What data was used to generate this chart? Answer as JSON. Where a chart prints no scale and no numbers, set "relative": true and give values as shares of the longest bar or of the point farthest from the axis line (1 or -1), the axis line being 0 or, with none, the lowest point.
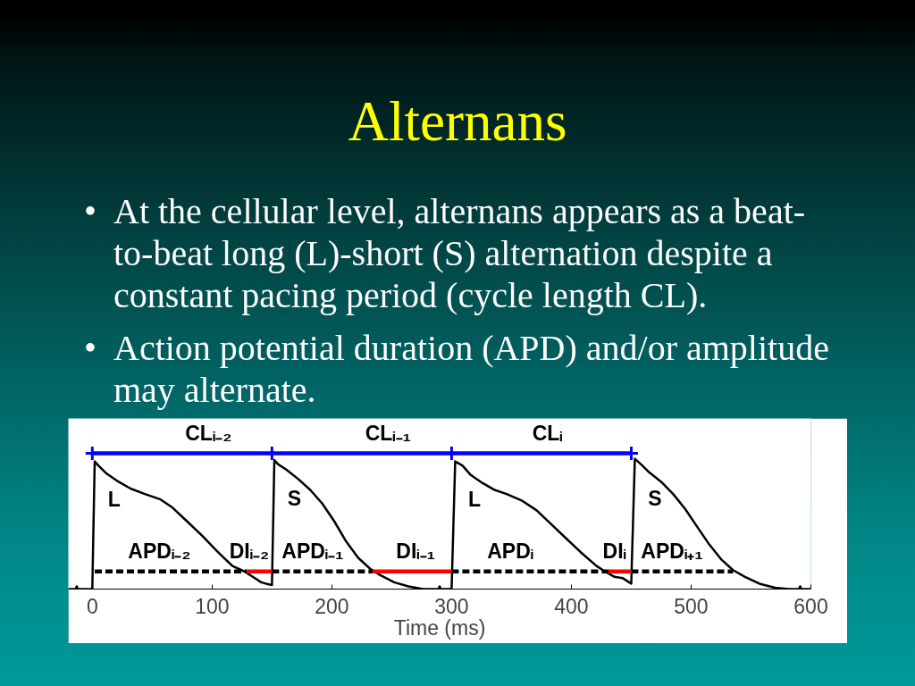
{
  "chart_data": {
    "type": "line",
    "title": "Alternans",
    "xlabel": "Time (ms)",
    "annotations": [
      "• At the cellular level, alternans appears as a beat-to-beat long (L)-short (S) alternation despite a constant pacing period (cycle length CL).",
      "• Action potential duration (APD) and/or amplitude may alternate.",
      {
        "text": "CLᵢ₋₂",
        "x": 97,
        "y": 1
      },
      {
        "text": "CLᵢ₋₁",
        "x": 247,
        "y": 1
      },
      {
        "text": "CLᵢ",
        "x": 380,
        "y": 1
      },
      {
        "text": "L",
        "x": 1,
        "y": 0.66
      },
      {
        "text": "S",
        "x": 151,
        "y": 0.67
      },
      {
        "text": "L",
        "x": 302,
        "y": 0.66
      },
      {
        "text": "S",
        "x": 452,
        "y": 0.67
      },
      {
        "text": "APDᵢ₋₂",
        "x": 56,
        "y": 0.13
      },
      {
        "text": "DIᵢ₋₂",
        "x": 131,
        "y": 0.13
      },
      {
        "text": "APDᵢ₋₁",
        "x": 184,
        "y": 0.13
      },
      {
        "text": "DIᵢ₋₁",
        "x": 270,
        "y": 0.13
      },
      {
        "text": "APDᵢ",
        "x": 349,
        "y": 0.13
      },
      {
        "text": "DIᵢ",
        "x": 436,
        "y": 0.13
      },
      {
        "text": "APDᵢ₊₁",
        "x": 484,
        "y": 0.13
      }
    ],
    "relative": true,
    "xlim": [
      -20,
      600
    ],
    "xticks": [
      0,
      100,
      200,
      300,
      400,
      500,
      600
    ],
    "grid": false,
    "series": [
      {
        "color": "#000000",
        "x": [
          -20,
          -14,
          -13,
          -12,
          0,
          2,
          5,
          12,
          22,
          32,
          44,
          57,
          67,
          79,
          92,
          104,
          117,
          127,
          134,
          141,
          145,
          150,
          152,
          155,
          162,
          172,
          182,
          192,
          202,
          212,
          222,
          232,
          239,
          252,
          264,
          276,
          289,
          290,
          291,
          300,
          303,
          309,
          316,
          326,
          336,
          346,
          359,
          371,
          383,
          396,
          408,
          421,
          428,
          436,
          443,
          450,
          453,
          458,
          465,
          475,
          485,
          495,
          505,
          515,
          525,
          535,
          545,
          557,
          570,
          582,
          590,
          591,
          592,
          600
        ],
        "values": [
          0,
          0,
          0.02,
          0,
          0,
          0.94,
          0.91,
          0.85,
          0.79,
          0.74,
          0.7,
          0.66,
          0.6,
          0.5,
          0.39,
          0.28,
          0.17,
          0.13,
          0.09,
          0.05,
          0.04,
          0.03,
          0.95,
          0.92,
          0.88,
          0.81,
          0.73,
          0.63,
          0.5,
          0.35,
          0.23,
          0.15,
          0.11,
          0.05,
          0.02,
          0,
          0,
          0.02,
          0,
          0,
          0.94,
          0.91,
          0.84,
          0.78,
          0.73,
          0.7,
          0.65,
          0.58,
          0.48,
          0.37,
          0.27,
          0.17,
          0.13,
          0.09,
          0.08,
          0.04,
          0.96,
          0.92,
          0.86,
          0.79,
          0.7,
          0.59,
          0.46,
          0.33,
          0.22,
          0.14,
          0.09,
          0.04,
          0.01,
          0,
          0,
          0.02,
          0,
          0
        ]
      },
      {
        "color": "#0000ff",
        "marker": "cross",
        "x": [
          0,
          150,
          300,
          450
        ],
        "values": [
          1,
          1,
          1,
          1
        ]
      },
      {
        "color": "#000000",
        "line_style": "dashed",
        "x": [
          2,
          129
        ],
        "values": [
          0.13,
          0.13
        ]
      },
      {
        "color": "#000000",
        "line_style": "dashed",
        "x": [
          150,
          234
        ],
        "values": [
          0.13,
          0.13
        ]
      },
      {
        "color": "#000000",
        "line_style": "dashed",
        "x": [
          300,
          431
        ],
        "values": [
          0.13,
          0.13
        ]
      },
      {
        "color": "#000000",
        "line_style": "dashed",
        "x": [
          450,
          535
        ],
        "values": [
          0.13,
          0.13
        ]
      },
      {
        "color": "#ff0000",
        "x": [
          129,
          150
        ],
        "values": [
          0.13,
          0.13
        ]
      },
      {
        "color": "#ff0000",
        "x": [
          234,
          300
        ],
        "values": [
          0.13,
          0.13
        ]
      },
      {
        "color": "#ff0000",
        "x": [
          431,
          450
        ],
        "values": [
          0.13,
          0.13
        ]
      }
    ]
  }
}
